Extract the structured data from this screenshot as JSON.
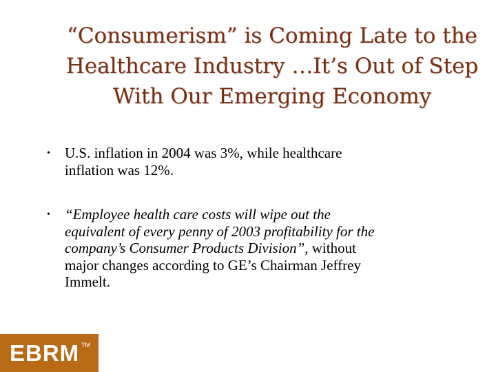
{
  "slide": {
    "title_lines": [
      "“Consumerism” is Coming Late to the",
      "Healthcare Industry …It’s Out of Step",
      "With Our Emerging Economy"
    ],
    "bullets": [
      {
        "lines": [
          "U.S. inflation in 2004 was 3%, while healthcare",
          "inflation was 12%."
        ]
      },
      {
        "italic_lines": [
          "“Employee health care costs will wipe out the",
          "equivalent of every penny of 2003 profitability for the",
          "company’s Consumer Products Division”,"
        ],
        "line3_rest": " without",
        "rest_lines": [
          "major changes according to GE’s Chairman Jeffrey",
          "Immelt."
        ]
      }
    ],
    "bullet_symbol": "•"
  },
  "logo": {
    "text": "EBRM",
    "tm": "TM",
    "background": "#b96a16"
  },
  "colors": {
    "title": "#7a2e10",
    "body_text": "#000000"
  }
}
